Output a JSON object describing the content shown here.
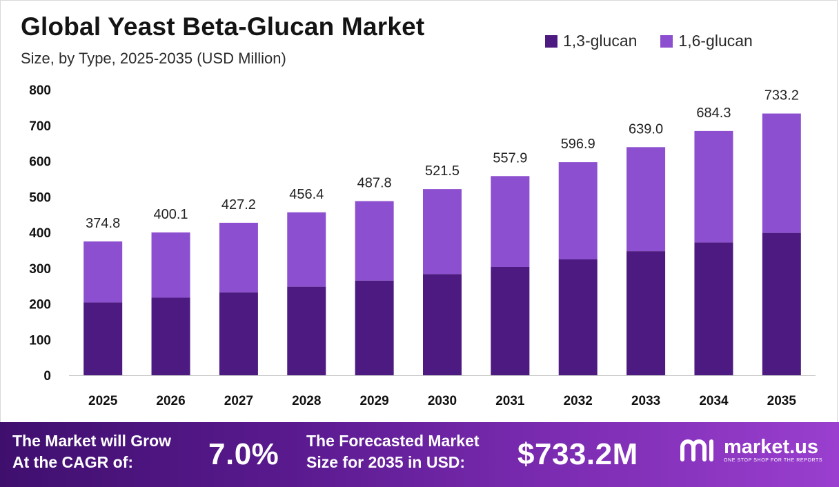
{
  "header": {
    "title": "Global Yeast Beta-Glucan Market",
    "subtitle": "Size, by  Type, 2025-2035 (USD Million)"
  },
  "colors": {
    "series_1": "#4c1a80",
    "series_2": "#8c4fcf",
    "axis_text": "#111111",
    "label_text": "#222222"
  },
  "chart_data": {
    "type": "bar",
    "stacked": true,
    "categories": [
      "2025",
      "2026",
      "2027",
      "2028",
      "2029",
      "2030",
      "2031",
      "2032",
      "2033",
      "2034",
      "2035"
    ],
    "series": [
      {
        "name": "1,3-glucan",
        "values": [
          204.0,
          217.5,
          232.3,
          248.1,
          265.3,
          283.6,
          303.4,
          324.6,
          347.6,
          372.2,
          398.8
        ]
      },
      {
        "name": "1,6-glucan",
        "values": [
          170.8,
          182.6,
          194.9,
          208.3,
          222.5,
          237.9,
          254.5,
          272.3,
          291.4,
          312.1,
          334.4
        ]
      }
    ],
    "totals": [
      "374.8",
      "400.1",
      "427.2",
      "456.4",
      "487.8",
      "521.5",
      "557.9",
      "596.9",
      "639.0",
      "684.3",
      "733.2"
    ],
    "yticks": [
      0,
      100,
      200,
      300,
      400,
      500,
      600,
      700,
      800
    ],
    "ylim": [
      0,
      800
    ],
    "legend_position": "top-right",
    "grid": false
  },
  "banner": {
    "cagr_label_line1": "The Market will Grow",
    "cagr_label_line2": "At the CAGR of:",
    "cagr_value": "7.0%",
    "forecast_label_line1": "The Forecasted Market",
    "forecast_label_line2": "Size for 2035 in USD:",
    "forecast_value": "$733.2M",
    "logo_name": "market.us",
    "logo_tagline": "ONE STOP SHOP FOR THE REPORTS"
  }
}
